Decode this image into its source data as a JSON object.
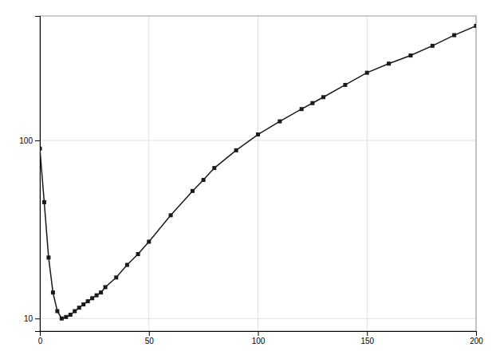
{
  "chart_data": {
    "type": "line",
    "x": [
      0,
      2,
      4,
      6,
      8,
      10,
      12,
      14,
      16,
      18,
      20,
      22,
      24,
      26,
      28,
      30,
      35,
      40,
      45,
      50,
      60,
      70,
      75,
      80,
      90,
      100,
      110,
      120,
      125,
      130,
      140,
      150,
      160,
      170,
      180,
      190,
      200
    ],
    "values": [
      90,
      45,
      22,
      14,
      11,
      10,
      10.2,
      10.5,
      11,
      11.5,
      12,
      12.5,
      13,
      13.5,
      14,
      15,
      17,
      20,
      23,
      27,
      38,
      52,
      60,
      70,
      88,
      108,
      128,
      150,
      162,
      175,
      205,
      240,
      270,
      300,
      340,
      390,
      440
    ],
    "color": "#1a1a1a",
    "marker": "square",
    "xlim": [
      0,
      200
    ],
    "ylim": [
      8.5,
      500
    ],
    "xticks": [
      0,
      50,
      100,
      150,
      200
    ],
    "yticks": [
      10,
      100
    ],
    "log": "y",
    "grid": true
  }
}
